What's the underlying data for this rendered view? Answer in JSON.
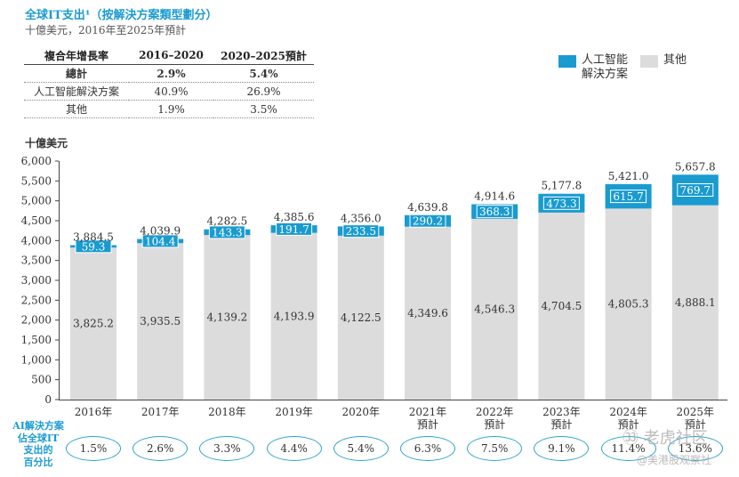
{
  "header": {
    "title": "全球IT支出¹（按解決方案類型劃分）",
    "subtitle": "十億美元，2016年至2025年預計"
  },
  "cagr_table": {
    "headers": [
      "複合年增長率",
      "2016–2020",
      "2020–2025預計"
    ],
    "rows": [
      {
        "label": "總計",
        "a": "2.9%",
        "b": "5.4%"
      },
      {
        "label": "人工智能解決方案",
        "a": "40.9%",
        "b": "26.9%"
      },
      {
        "label": "其他",
        "a": "1.9%",
        "b": "3.5%"
      }
    ]
  },
  "legend": {
    "ai_line1": "人工智能",
    "ai_line2": "解決方案",
    "other": "其他"
  },
  "bottom": {
    "label_lines": [
      "AI解決方案",
      "佔全球IT",
      "支出的",
      "百分比"
    ],
    "shares": [
      "1.5%",
      "2.6%",
      "3.3%",
      "4.4%",
      "5.4%",
      "6.3%",
      "7.5%",
      "9.1%",
      "11.4%",
      "13.6%"
    ]
  },
  "watermark": {
    "line1": "㉝ 老虎社区",
    "line2": "@美港股观察社"
  },
  "colors": {
    "ai": "#1a9bd0",
    "other": "#dcdcdc",
    "title": "#1a9bd0"
  },
  "chart_data": {
    "type": "bar",
    "stacked": true,
    "ylabel": "十億美元",
    "ylim": [
      0,
      6000
    ],
    "yticks": [
      "0",
      "500",
      "1,000",
      "1,500",
      "2,000",
      "2,500",
      "3,000",
      "3,500",
      "4,000",
      "4,500",
      "5,000",
      "5,500",
      "6,000"
    ],
    "categories": [
      [
        "2016年"
      ],
      [
        "2017年"
      ],
      [
        "2018年"
      ],
      [
        "2019年"
      ],
      [
        "2020年"
      ],
      [
        "2021年",
        "預計"
      ],
      [
        "2022年",
        "預計"
      ],
      [
        "2023年",
        "預計"
      ],
      [
        "2024年",
        "預計"
      ],
      [
        "2025年",
        "預計"
      ]
    ],
    "series": [
      {
        "name": "其他",
        "values": [
          3825.2,
          3935.5,
          4139.2,
          4193.9,
          4122.5,
          4349.6,
          4546.3,
          4704.5,
          4805.3,
          4888.1
        ],
        "labels": [
          "3,825.2",
          "3,935.5",
          "4,139.2",
          "4,193.9",
          "4,122.5",
          "4,349.6",
          "4,546.3",
          "4,704.5",
          "4,805.3",
          "4,888.1"
        ]
      },
      {
        "name": "人工智能解決方案",
        "values": [
          59.3,
          104.4,
          143.3,
          191.7,
          233.5,
          290.2,
          368.3,
          473.3,
          615.7,
          769.7
        ],
        "labels": [
          "59.3",
          "104.4",
          "143.3",
          "191.7",
          "233.5",
          "290.2",
          "368.3",
          "473.3",
          "615.7",
          "769.7"
        ]
      }
    ],
    "totals": [
      3884.5,
      4039.9,
      4282.5,
      4385.6,
      4356.0,
      4639.8,
      4914.6,
      5177.8,
      5421.0,
      5657.8
    ],
    "total_labels": [
      "3,884.5",
      "4,039.9",
      "4,282.5",
      "4,385.6",
      "4,356.0",
      "4,639.8",
      "4,914.6",
      "5,177.8",
      "5,421.0",
      "5,657.8"
    ]
  }
}
